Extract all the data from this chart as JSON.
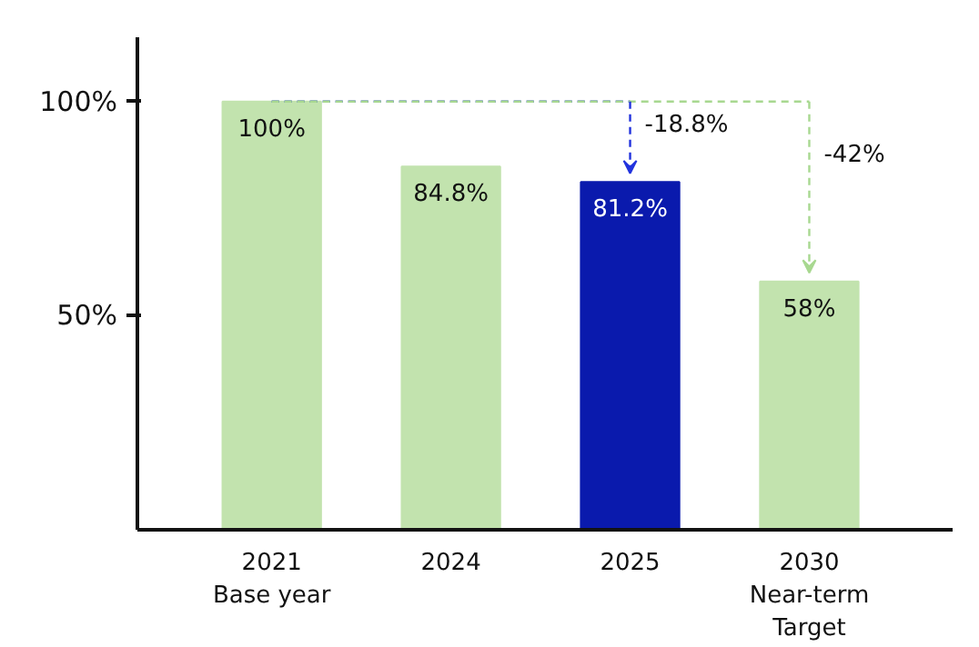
{
  "chart_data": {
    "type": "bar",
    "categories": [
      "2021\nBase year",
      "2024",
      "2025",
      "2030\nNear-term\nTarget"
    ],
    "values": [
      100,
      84.8,
      81.2,
      58
    ],
    "colors": [
      "#c2e3ae",
      "#c2e3ae",
      "#0a1aad",
      "#c2e3ae"
    ],
    "value_labels": [
      "100%",
      "84.8%",
      "81.2%",
      "58%"
    ],
    "ylim": [
      0,
      115
    ],
    "yticks": [
      {
        "value": 50,
        "label": "50%"
      },
      {
        "value": 100,
        "label": "100%"
      }
    ],
    "annotations": [
      "-18.8%",
      "-42%"
    ],
    "grid": false
  }
}
